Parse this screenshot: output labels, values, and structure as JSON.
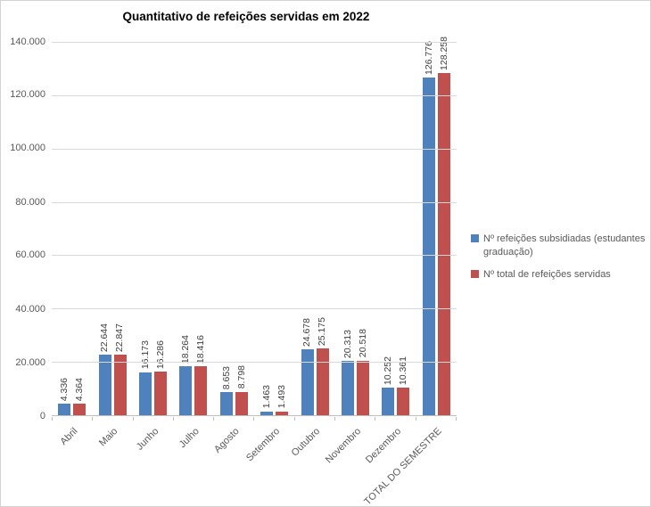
{
  "chart_data": {
    "type": "bar",
    "title": "Quantitativo de refeições servidas em 2022",
    "categories": [
      "Abril",
      "Maio",
      "Junho",
      "Julho",
      "Agosto",
      "Setembro",
      "Outubro",
      "Novembro",
      "Dezembro",
      "TOTAL DO SEMESTRE"
    ],
    "series": [
      {
        "name": "Nº refeições subsidiadas (estudantes graduação)",
        "color": "#4F81BD",
        "values": [
          4336,
          22644,
          16173,
          18264,
          8653,
          1463,
          24678,
          20313,
          10252,
          126776
        ],
        "labels": [
          "4.336",
          "22.644",
          "16.173",
          "18.264",
          "8.653",
          "1.463",
          "24.678",
          "20.313",
          "10.252",
          "126.776"
        ]
      },
      {
        "name": "Nº total de refeições servidas",
        "color": "#C0504D",
        "values": [
          4364,
          22847,
          16286,
          18416,
          8798,
          1493,
          25175,
          20518,
          10361,
          128258
        ],
        "labels": [
          "4.364",
          "22.847",
          "16.286",
          "18.416",
          "8.798",
          "1.493",
          "25.175",
          "20.518",
          "10.361",
          "128.258"
        ]
      }
    ],
    "y_axis": {
      "min": 0,
      "max": 140000,
      "step": 20000,
      "tick_labels": [
        "140.000",
        "120.000",
        "100.000",
        "80.000",
        "60.000",
        "40.000",
        "20.000",
        "0"
      ]
    },
    "xlabel": "",
    "ylabel": "",
    "grid": true,
    "legend_position": "right"
  }
}
